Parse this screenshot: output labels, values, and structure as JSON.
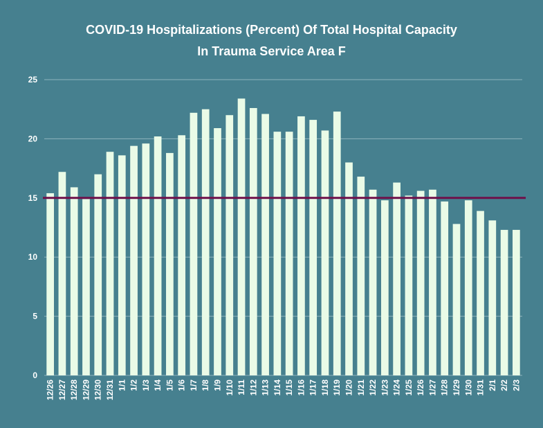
{
  "chart_data": {
    "type": "bar",
    "title": "COVID-19 Hospitalizations (Percent) Of Total Hospital Capacity",
    "subtitle": "In Trauma Service Area F",
    "xlabel": "",
    "ylabel": "",
    "ylim": [
      0,
      25
    ],
    "yticks": [
      0,
      5,
      10,
      15,
      20,
      25
    ],
    "grid": true,
    "categories": [
      "12/26",
      "12/27",
      "12/28",
      "12/29",
      "12/30",
      "12/31",
      "1/1",
      "1/2",
      "1/3",
      "1/4",
      "1/5",
      "1/6",
      "1/7",
      "1/8",
      "1/9",
      "1/10",
      "1/11",
      "1/12",
      "1/13",
      "1/14",
      "1/15",
      "1/16",
      "1/17",
      "1/18",
      "1/19",
      "1/20",
      "1/21",
      "1/22",
      "1/23",
      "1/24",
      "1/25",
      "1/26",
      "1/27",
      "1/28",
      "1/29",
      "1/30",
      "1/31",
      "2/1",
      "2/2",
      "2/3"
    ],
    "values": [
      15.4,
      17.2,
      15.9,
      14.9,
      17.0,
      18.9,
      18.6,
      19.4,
      19.6,
      20.2,
      18.8,
      20.3,
      22.2,
      22.5,
      20.9,
      22.0,
      23.4,
      22.6,
      22.1,
      20.6,
      20.6,
      21.9,
      21.6,
      20.7,
      22.3,
      18.0,
      16.8,
      15.7,
      14.8,
      16.3,
      15.2,
      15.6,
      15.7,
      14.7,
      12.8,
      14.8,
      13.9,
      13.1,
      12.3,
      12.3
    ],
    "reference_line": {
      "value": 15
    },
    "colors": {
      "background": "#46808f",
      "bar": "#eafbe7",
      "reference_line": "#6e0f4a",
      "grid": "#8fb4bd",
      "text": "#ffffff"
    }
  }
}
